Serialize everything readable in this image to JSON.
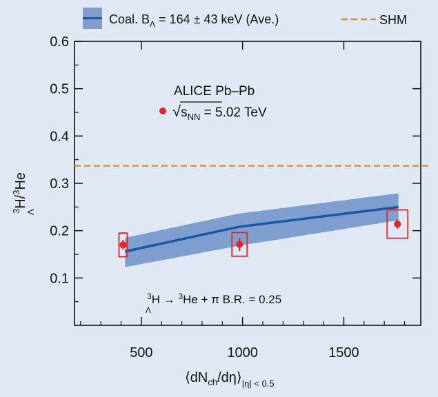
{
  "chart_data": {
    "type": "line",
    "ylabel": {
      "sup1": "3",
      "sub": "Λ",
      "mid": "H/",
      "sup2": "3",
      "end": "He"
    },
    "xlabel": {
      "open": "⟨dN",
      "sub": "ch",
      "mid": "/dη⟩",
      "range": "|η| < 0.5"
    },
    "xlim": [
      170,
      1880
    ],
    "ylim": [
      0.0,
      0.6
    ],
    "xticks": [
      500,
      1000,
      1500
    ],
    "xtick_labels": [
      "500",
      "1000",
      "1500"
    ],
    "yticks": [
      0.1,
      0.2,
      0.3,
      0.4,
      0.5,
      0.6
    ],
    "ytick_labels": [
      "0.1",
      "0.2",
      "0.3",
      "0.4",
      "0.5",
      "0.6"
    ],
    "legend": {
      "coal": {
        "pre": "Coal. B",
        "sub": "Λ",
        "post": " = 164 ± 43 keV (Ave.)"
      },
      "shm": "SHM",
      "placement": "top, outside plot"
    },
    "annotations": {
      "experiment": "ALICE Pb–Pb",
      "energy": {
        "pre": "√",
        "s": "s",
        "sub": "NN",
        "post": " = 5.02 TeV"
      },
      "decay": {
        "sup1": "3",
        "sub": "Λ",
        "mid1": "H → ",
        "sup2": "3",
        "mid2": "He + π  B.R. = 0.25"
      }
    },
    "series": [
      {
        "type": "band",
        "x": [
          420,
          980,
          1770
        ],
        "low": [
          0.123,
          0.168,
          0.222
        ],
        "high": [
          0.185,
          0.236,
          0.279
        ],
        "color": "#7e9ed0"
      },
      {
        "type": "line",
        "x": [
          420,
          980,
          1770
        ],
        "values": [
          0.156,
          0.208,
          0.25
        ],
        "color": "#1c56a3"
      },
      {
        "type": "hline",
        "values": [
          0.337
        ],
        "color": "#d98b2b",
        "dashed": true
      },
      {
        "type": "scatter",
        "x": [
          410,
          985,
          1765
        ],
        "values": [
          0.17,
          0.171,
          0.214
        ],
        "stat_err": [
          0.01,
          0.014,
          0.01
        ],
        "sys_err": [
          0.025,
          0.025,
          0.03
        ],
        "color": "#e0252b"
      }
    ]
  }
}
